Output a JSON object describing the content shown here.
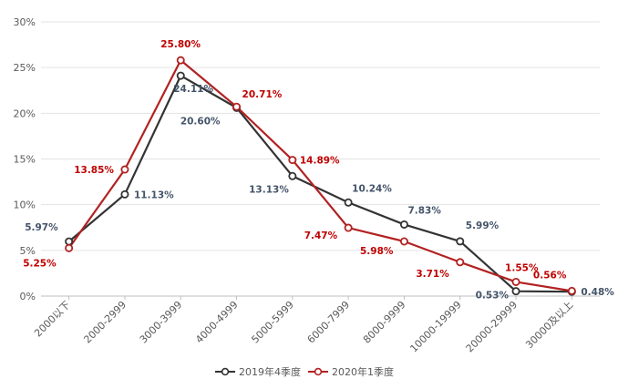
{
  "chart_data": {
    "type": "line",
    "categories": [
      "2000以下",
      "2000-2999",
      "3000-3999",
      "4000-4999",
      "5000-5999",
      "6000-7999",
      "8000-9999",
      "10000-19999",
      "20000-29999",
      "30000及以上"
    ],
    "series": [
      {
        "name": "2019年4季度",
        "color": "#333333",
        "values": [
          5.97,
          11.13,
          24.11,
          20.6,
          13.13,
          10.24,
          7.83,
          5.99,
          0.53,
          0.48
        ],
        "labels": [
          "5.97%",
          "11.13%",
          "24.11%",
          "20.60%",
          "13.13%",
          "10.24%",
          "7.83%",
          "5.99%",
          "0.53%",
          "0.48%"
        ]
      },
      {
        "name": "2020年1季度",
        "color": "#b22222",
        "values": [
          5.25,
          13.85,
          25.8,
          20.71,
          14.89,
          7.47,
          5.98,
          3.71,
          1.55,
          0.56
        ],
        "labels": [
          "5.25%",
          "13.85%",
          "25.80%",
          "20.71%",
          "14.89%",
          "7.47%",
          "5.98%",
          "3.71%",
          "1.55%",
          "0.56%"
        ]
      }
    ],
    "y_ticks": [
      "0%",
      "5%",
      "10%",
      "15%",
      "20%",
      "25%",
      "30%"
    ],
    "ylim": [
      0,
      30
    ],
    "grid": true,
    "legend": "bottom-center",
    "title": "",
    "xlabel": "",
    "ylabel": ""
  }
}
